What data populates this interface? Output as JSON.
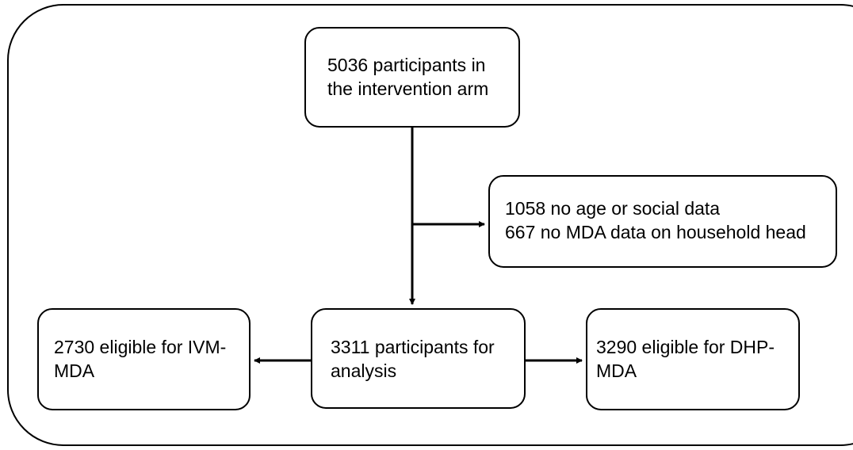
{
  "nodes": [
    {
      "lines": [
        "5036 participants in",
        "the intervention arm"
      ]
    },
    {
      "lines": [
        "1058 no age or social data",
        "667 no MDA data on household head"
      ]
    },
    {
      "lines": [
        "3311 participants for",
        "analysis"
      ]
    },
    {
      "lines": [
        "2730 eligible for IVM-",
        "MDA"
      ]
    },
    {
      "lines": [
        "3290 eligible for DHP-",
        "MDA"
      ]
    }
  ]
}
